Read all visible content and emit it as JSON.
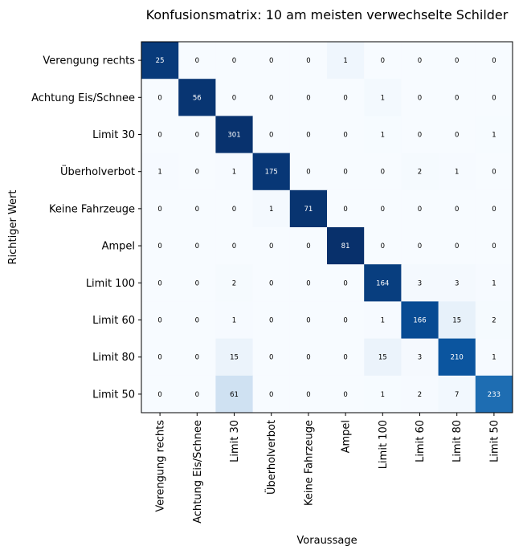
{
  "chart_data": {
    "type": "heatmap",
    "title": "Konfusionsmatrix: 10 am meisten verwechselte Schilder",
    "xlabel": "Voraussage",
    "ylabel": "Richtiger Wert",
    "row_labels": [
      "Verengung rechts",
      "Achtung Eis/Schnee",
      "Limit 30",
      "Überholverbot",
      "Keine Fahrzeuge",
      "Ampel",
      "Limit 100",
      "Limit 60",
      "Limit 80",
      "Limit 50"
    ],
    "col_labels": [
      "Verengung rechts",
      "Achtung Eis/Schnee",
      "Limit 30",
      "Überholverbot",
      "Keine Fahrzeuge",
      "Ampel",
      "Limit 100",
      "Limit 60",
      "Limit 80",
      "Limit 50"
    ],
    "values": [
      [
        25,
        0,
        0,
        0,
        0,
        1,
        0,
        0,
        0,
        0
      ],
      [
        0,
        56,
        0,
        0,
        0,
        0,
        1,
        0,
        0,
        0
      ],
      [
        0,
        0,
        301,
        0,
        0,
        0,
        1,
        0,
        0,
        1
      ],
      [
        1,
        0,
        1,
        175,
        0,
        0,
        0,
        2,
        1,
        0
      ],
      [
        0,
        0,
        0,
        1,
        71,
        0,
        0,
        0,
        0,
        0
      ],
      [
        0,
        0,
        0,
        0,
        0,
        81,
        0,
        0,
        0,
        0
      ],
      [
        0,
        0,
        2,
        0,
        0,
        0,
        164,
        3,
        3,
        1
      ],
      [
        0,
        0,
        1,
        0,
        0,
        0,
        1,
        166,
        15,
        2
      ],
      [
        0,
        0,
        15,
        0,
        0,
        0,
        15,
        3,
        210,
        1
      ],
      [
        0,
        0,
        61,
        0,
        0,
        0,
        1,
        2,
        7,
        233
      ]
    ],
    "colormap": "Blues",
    "normalization": "row",
    "grid": false
  }
}
